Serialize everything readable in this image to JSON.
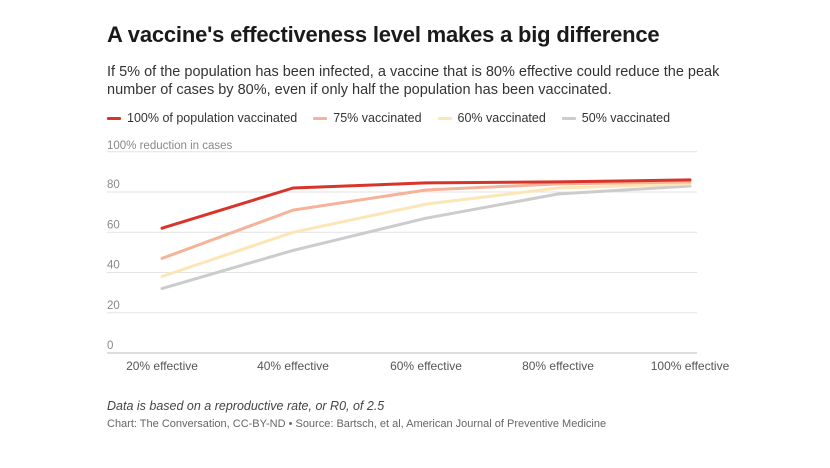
{
  "title": "A vaccine's effectiveness level makes a big difference",
  "subtitle": "If 5% of the population has been infected, a vaccine that is 80% effective could reduce the peak number of cases by 80%, even if only half the population has been vaccinated.",
  "note": "Data is based on a reproductive rate, or R0, of 2.5",
  "credit": "Chart: The Conversation, CC-BY-ND • Source: Bartsch, et al, American Journal of Preventive Medicine",
  "chart_data": {
    "type": "line",
    "ylabel": "100% reduction in cases",
    "categories": [
      "20% effective",
      "40% effective",
      "60% effective",
      "80% effective",
      "100% effective"
    ],
    "yticks": [
      0,
      20,
      40,
      60,
      80
    ],
    "ytick_labels": [
      "0",
      "20",
      "40",
      "60",
      "80"
    ],
    "ylim": [
      0,
      100
    ],
    "grid": true,
    "legend": "top",
    "series": [
      {
        "name": "100% of population vaccinated",
        "color": "#d8352a",
        "values": [
          62,
          82,
          84.5,
          85,
          86
        ]
      },
      {
        "name": "75% vaccinated",
        "color": "#f5b399",
        "values": [
          47,
          71,
          81,
          84,
          85
        ]
      },
      {
        "name": "60% vaccinated",
        "color": "#fde6b6",
        "values": [
          38,
          60,
          74,
          82,
          84
        ]
      },
      {
        "name": "50% vaccinated",
        "color": "#cccccc",
        "values": [
          32,
          51,
          67,
          79,
          83
        ]
      }
    ]
  }
}
